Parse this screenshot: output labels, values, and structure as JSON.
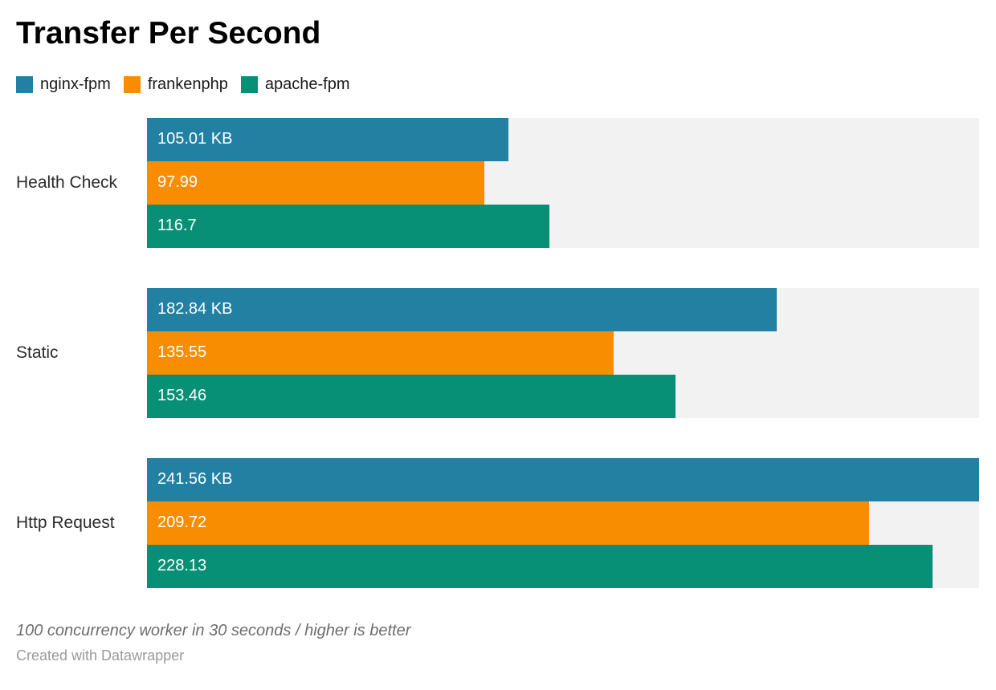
{
  "title": "Transfer Per Second",
  "chart_data": {
    "type": "bar",
    "orientation": "horizontal",
    "title": "Transfer Per Second",
    "categories": [
      "Health Check",
      "Static",
      "Http Request"
    ],
    "series": [
      {
        "name": "nginx-fpm",
        "color": "#2280A2",
        "values": [
          105.01,
          182.84,
          241.56
        ],
        "display_labels": [
          "105.01 KB",
          "182.84 KB",
          "241.56 KB"
        ]
      },
      {
        "name": "frankenphp",
        "color": "#F98D02",
        "values": [
          97.99,
          135.55,
          209.72
        ],
        "display_labels": [
          "97.99",
          "135.55",
          "209.72"
        ]
      },
      {
        "name": "apache-fpm",
        "color": "#089077",
        "values": [
          116.7,
          153.46,
          228.13
        ],
        "display_labels": [
          "116.7",
          "153.46",
          "228.13"
        ]
      }
    ],
    "unit": "KB",
    "xlim": [
      0,
      241.56
    ],
    "value_axis_hidden": true,
    "grid": false,
    "track_color": "#F2F2F2",
    "legend_position": "top"
  },
  "footer": {
    "note": "100 concurrency worker in 30 seconds / higher is better",
    "attribution": "Created with Datawrapper"
  }
}
